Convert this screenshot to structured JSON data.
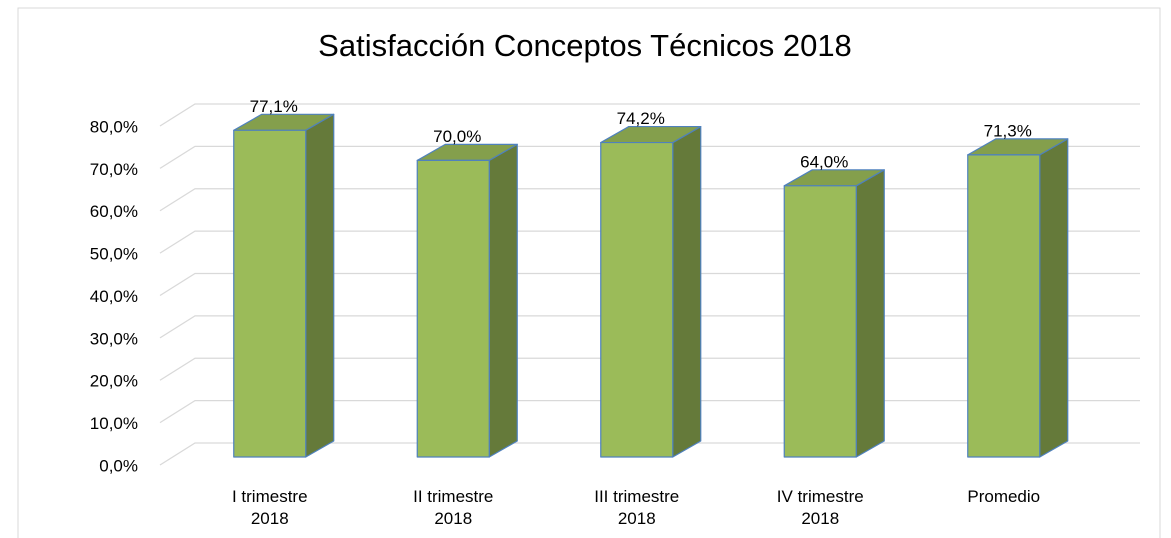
{
  "chart_data": {
    "type": "bar3d",
    "title": "Satisfacción Conceptos Técnicos 2018",
    "categories": [
      "I trimestre 2018",
      "II trimestre 2018",
      "III trimestre 2018",
      "IV trimestre 2018",
      "Promedio"
    ],
    "values": [
      77.1,
      70.0,
      74.2,
      64.0,
      71.3
    ],
    "value_labels": [
      "77,1%",
      "70,0%",
      "74,2%",
      "64,0%",
      "71,3%"
    ],
    "color": "#9bbb59",
    "ylim": [
      0,
      80
    ],
    "yticks": [
      {
        "value": 0,
        "label": "0,0%"
      },
      {
        "value": 10,
        "label": "10,0%"
      },
      {
        "value": 20,
        "label": "20,0%"
      },
      {
        "value": 30,
        "label": "30,0%"
      },
      {
        "value": 40,
        "label": "40,0%"
      },
      {
        "value": 50,
        "label": "50,0%"
      },
      {
        "value": 60,
        "label": "60,0%"
      },
      {
        "value": 70,
        "label": "70,0%"
      },
      {
        "value": 80,
        "label": "80,0%"
      }
    ],
    "grid": true
  }
}
